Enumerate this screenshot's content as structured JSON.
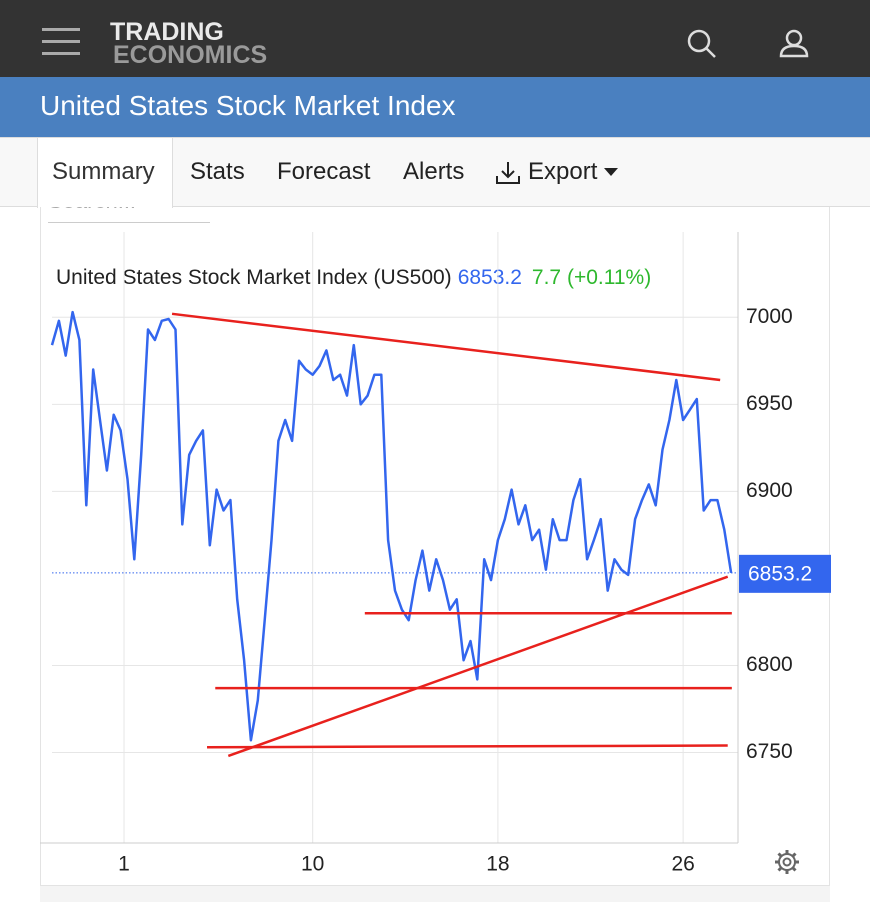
{
  "header": {
    "logo_top": "TRADING",
    "logo_bottom": "ECONOMICS"
  },
  "page_title": "United States Stock Market Index",
  "tabs": [
    "Summary",
    "Stats",
    "Forecast",
    "Alerts",
    "Export"
  ],
  "search_placeholder": "Search...",
  "chart_data": {
    "type": "line",
    "title": "United States Stock Market Index (US500)",
    "last": 6853.2,
    "change_label": "7.7 (+0.11%)",
    "color": "#3366ee",
    "values": [
      6984,
      6998,
      6978,
      7003,
      6987,
      6892,
      6970,
      6941,
      6912,
      6944,
      6935,
      6907,
      6861,
      6921,
      6993,
      6987,
      6998,
      6999,
      6993,
      6881,
      6921,
      6929,
      6935,
      6869,
      6901,
      6889,
      6895,
      6838,
      6803,
      6757,
      6780,
      6826,
      6872,
      6929,
      6941,
      6929,
      6975,
      6970,
      6967,
      6972,
      6981,
      6964,
      6967,
      6955,
      6984,
      6950,
      6955,
      6967,
      6967,
      6872,
      6843,
      6832,
      6826,
      6849,
      6866,
      6843,
      6861,
      6849,
      6832,
      6838,
      6803,
      6814,
      6792,
      6861,
      6849,
      6872,
      6884,
      6901,
      6881,
      6892,
      6872,
      6878,
      6855,
      6884,
      6872,
      6872,
      6895,
      6907,
      6861,
      6872,
      6884,
      6843,
      6861,
      6855,
      6852,
      6884,
      6895,
      6904,
      6892,
      6924,
      6941,
      6964,
      6941,
      6947,
      6953,
      6889,
      6895,
      6895,
      6878,
      6853.2
    ],
    "xlim": [
      0,
      100
    ],
    "xticks": [
      {
        "value": 10.5,
        "label": "1"
      },
      {
        "value": 38,
        "label": "10"
      },
      {
        "value": 65,
        "label": "18"
      },
      {
        "value": 92,
        "label": "26"
      }
    ],
    "ylim": [
      6698,
      7049
    ],
    "yticks": [
      6750,
      6800,
      6900,
      6950,
      7000
    ],
    "grid": true,
    "trendlines": [
      {
        "x": [
          17.5,
          97.4
        ],
        "y": [
          7002,
          6964
        ],
        "color": "#e8211d"
      },
      {
        "x": [
          25.7,
          98.5
        ],
        "y": [
          6748,
          6851
        ],
        "color": "#e8211d"
      },
      {
        "x": [
          45.6,
          99.1
        ],
        "y": [
          6830,
          6830
        ],
        "color": "#e8211d"
      },
      {
        "x": [
          23.8,
          99.1
        ],
        "y": [
          6787,
          6787
        ],
        "color": "#e8211d"
      },
      {
        "x": [
          22.6,
          98.5
        ],
        "y": [
          6753,
          6754
        ],
        "color": "#e8211d"
      }
    ]
  }
}
